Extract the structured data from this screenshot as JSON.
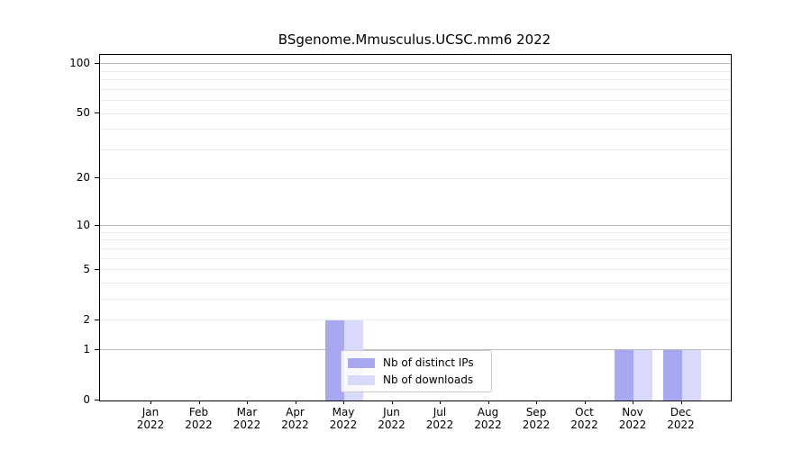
{
  "chart_data": {
    "type": "bar",
    "title": "BSgenome.Mmusculus.UCSC.mm6 2022",
    "xlabel": "",
    "ylabel": "",
    "yscale": "log1p",
    "ylim": [
      0,
      113
    ],
    "yticks": [
      0,
      1,
      2,
      5,
      10,
      20,
      50,
      100
    ],
    "grid": {
      "major": [
        1,
        10,
        100
      ],
      "minor": [
        2,
        3,
        4,
        5,
        6,
        7,
        8,
        9,
        20,
        30,
        40,
        50,
        60,
        70,
        80,
        90
      ],
      "major_color": "#bbbbbb",
      "minor_color": "#eaeaea"
    },
    "categories": [
      {
        "month": "Jan",
        "year": "2022"
      },
      {
        "month": "Feb",
        "year": "2022"
      },
      {
        "month": "Mar",
        "year": "2022"
      },
      {
        "month": "Apr",
        "year": "2022"
      },
      {
        "month": "May",
        "year": "2022"
      },
      {
        "month": "Jun",
        "year": "2022"
      },
      {
        "month": "Jul",
        "year": "2022"
      },
      {
        "month": "Aug",
        "year": "2022"
      },
      {
        "month": "Sep",
        "year": "2022"
      },
      {
        "month": "Oct",
        "year": "2022"
      },
      {
        "month": "Nov",
        "year": "2022"
      },
      {
        "month": "Dec",
        "year": "2022"
      }
    ],
    "series": [
      {
        "name": "Nb of distinct IPs",
        "color": "#a8a8f2",
        "values": [
          0,
          0,
          0,
          0,
          2,
          0,
          0,
          0,
          0,
          0,
          1,
          1
        ]
      },
      {
        "name": "Nb of downloads",
        "color": "#d9d9fa",
        "values": [
          0,
          0,
          0,
          0,
          2,
          0,
          0,
          0,
          0,
          0,
          1,
          1
        ]
      }
    ],
    "legend": {
      "position": "lower center"
    }
  }
}
